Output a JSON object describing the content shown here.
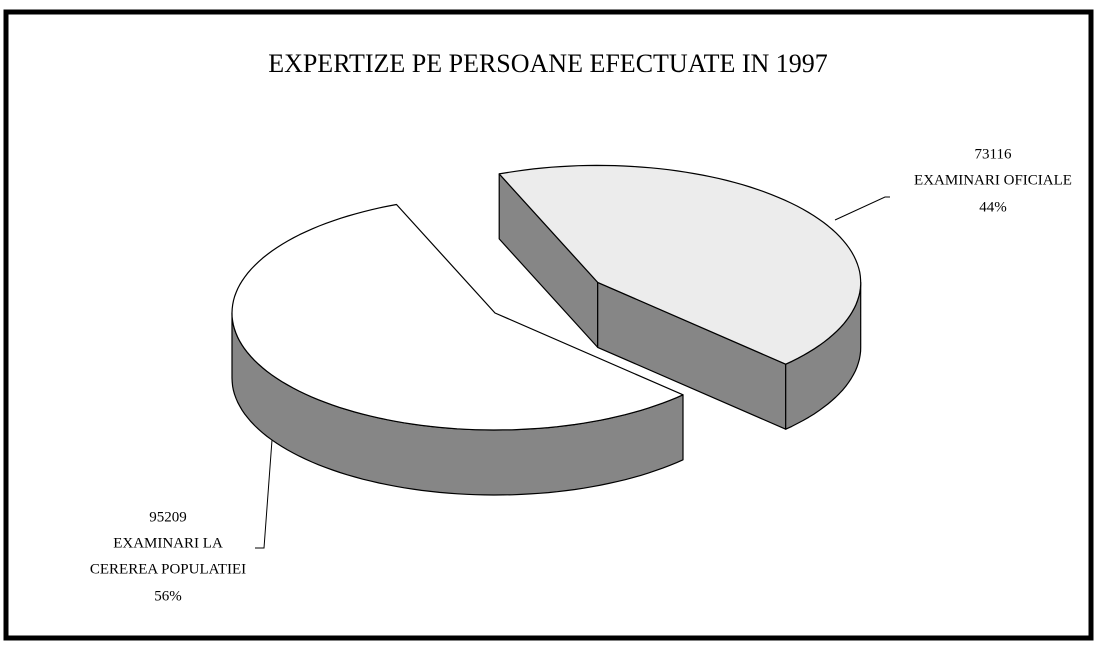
{
  "chart_data": {
    "type": "pie3d",
    "title": "EXPERTIZE PE PERSOANE EFECTUATE IN 1997",
    "categories": [
      [
        "EXAMINARI OFICIALE"
      ],
      [
        "EXAMINARI LA",
        "CEREREA POPULATIEI"
      ]
    ],
    "values": [
      73116,
      95209
    ],
    "percent_labels": [
      "44%",
      "56%"
    ],
    "colors": [
      "#ececec",
      "#ffffff"
    ],
    "side_color": "#868686"
  }
}
